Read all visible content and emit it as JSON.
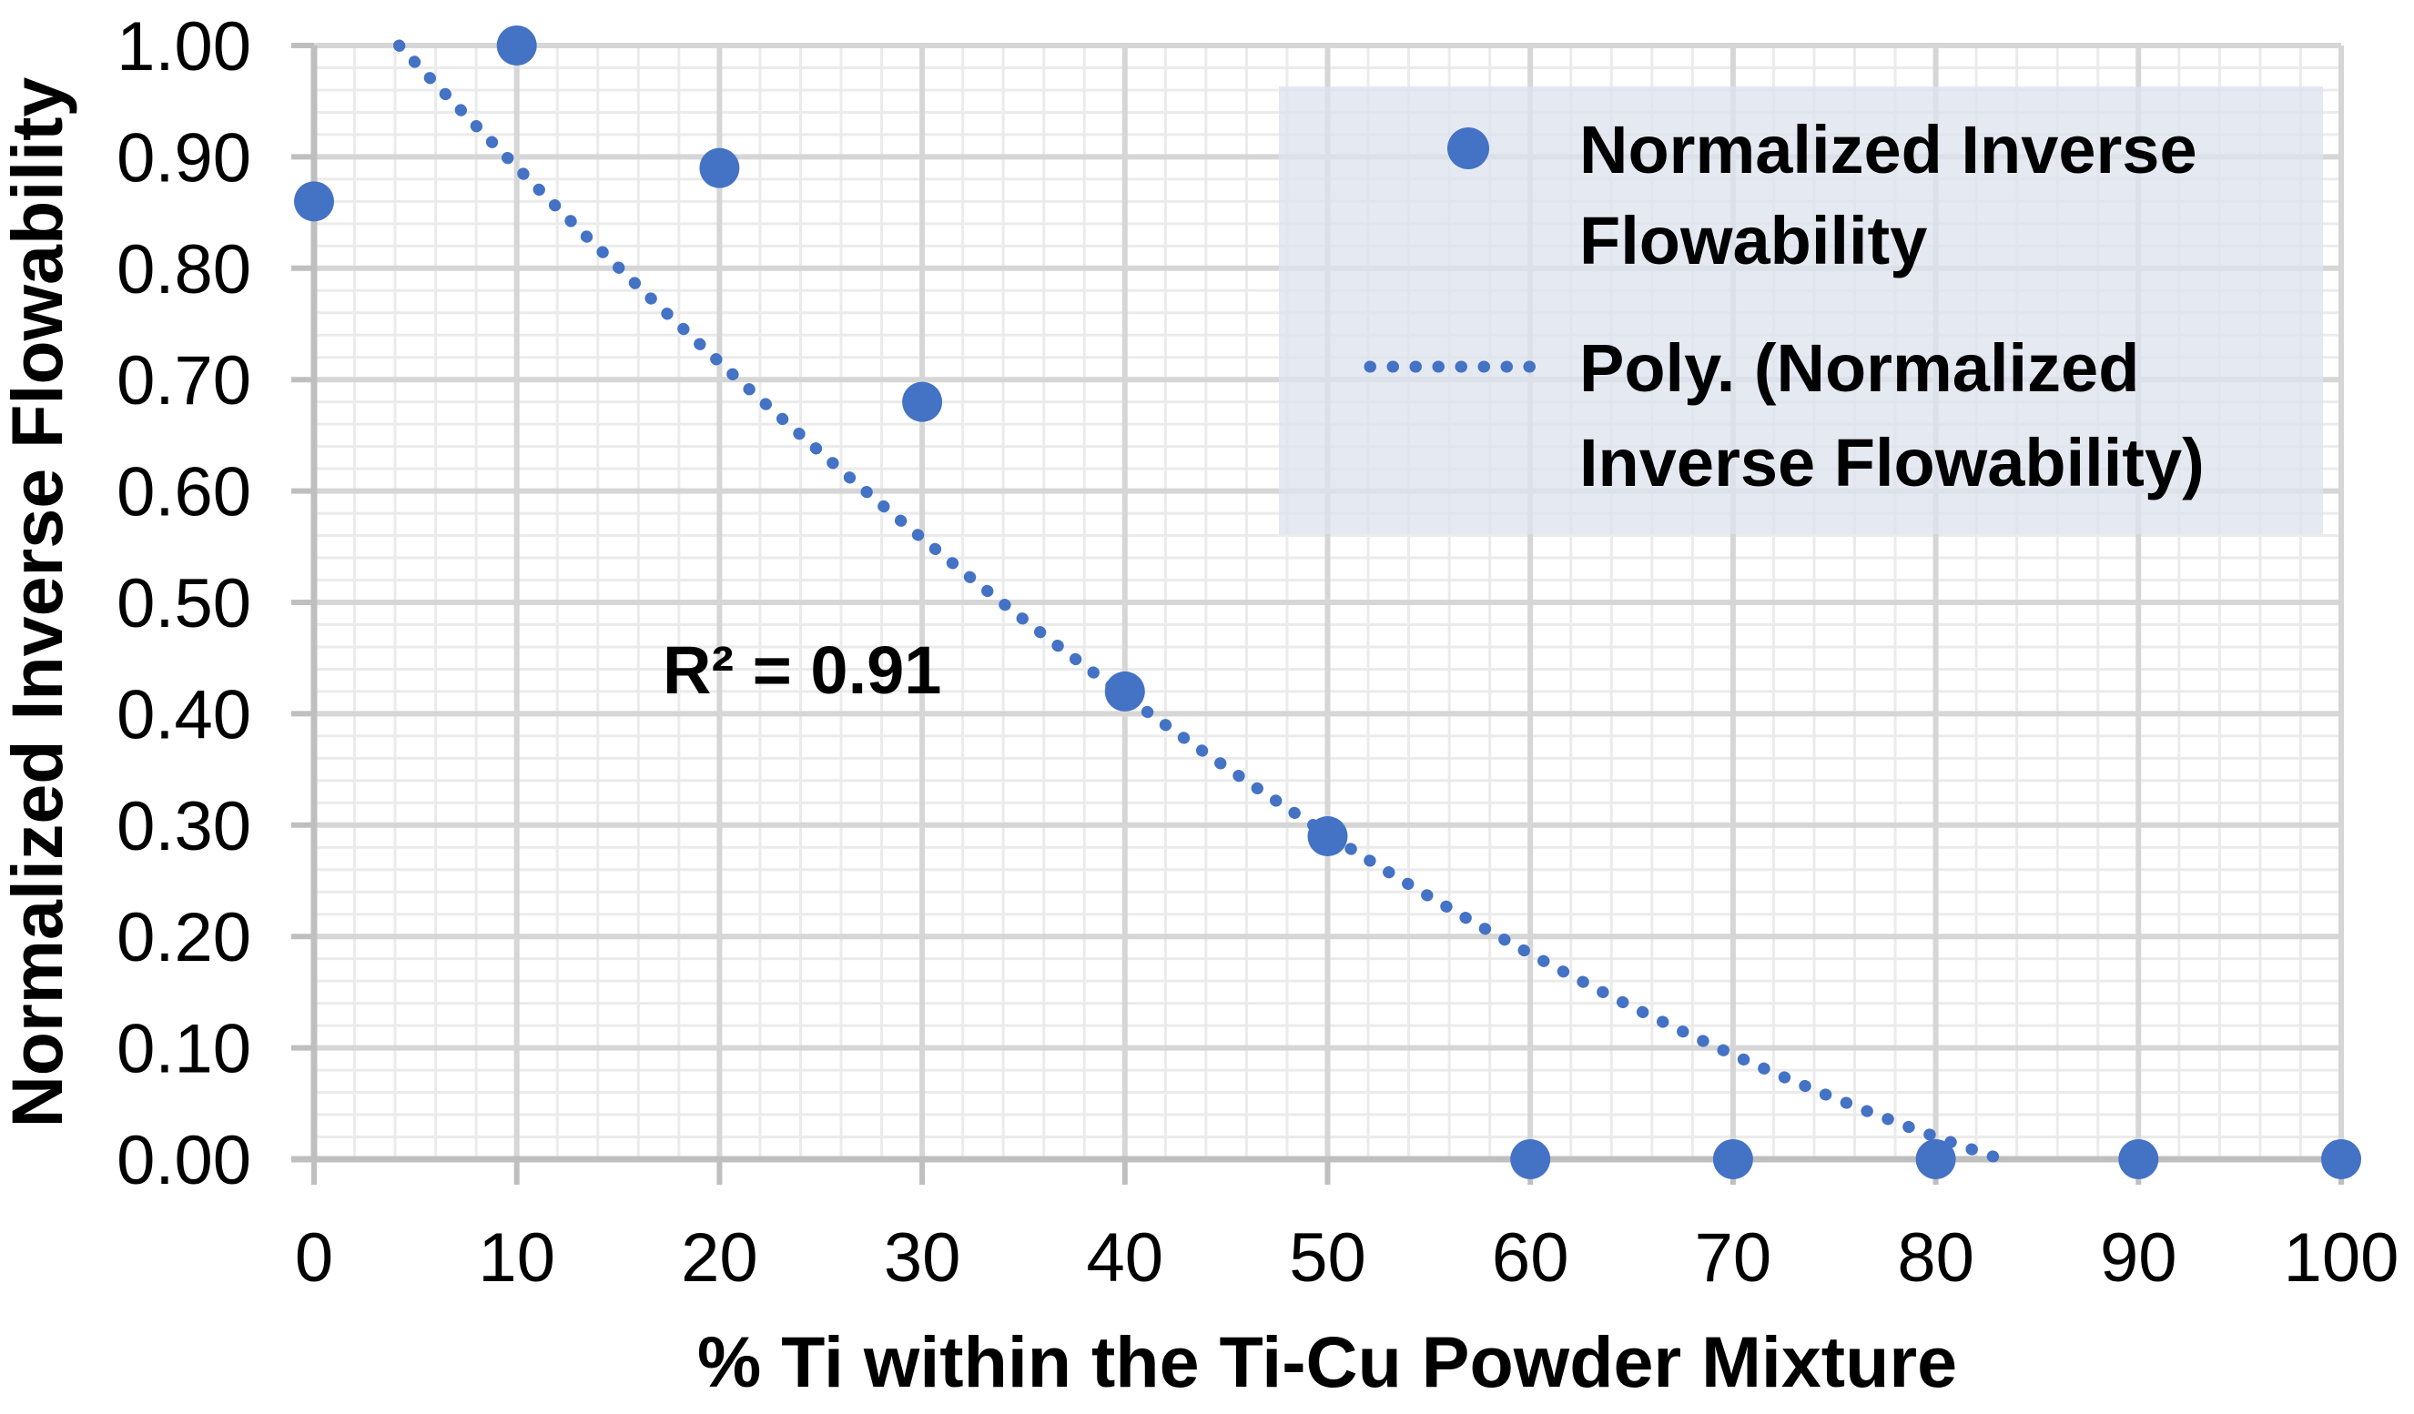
{
  "chart_data": {
    "type": "scatter",
    "xlabel": "% Ti within the Ti-Cu Powder Mixture",
    "ylabel": "Normalized Inverse Flowability",
    "xlim": [
      0,
      100
    ],
    "ylim": [
      0.0,
      1.0
    ],
    "x_ticks": [
      0,
      10,
      20,
      30,
      40,
      50,
      60,
      70,
      80,
      90,
      100
    ],
    "x_tick_labels": [
      "0",
      "10",
      "20",
      "30",
      "40",
      "50",
      "60",
      "70",
      "80",
      "90",
      "100"
    ],
    "y_ticks": [
      0.0,
      0.1,
      0.2,
      0.3,
      0.4,
      0.5,
      0.6,
      0.7,
      0.8,
      0.9,
      1.0
    ],
    "y_tick_labels": [
      "0.00",
      "0.10",
      "0.20",
      "0.30",
      "0.40",
      "0.50",
      "0.60",
      "0.70",
      "0.80",
      "0.90",
      "1.00"
    ],
    "grid": {
      "major": true,
      "minor": true,
      "x_minor_step": 2,
      "y_minor_step": 0.02
    },
    "series": [
      {
        "name": "Normalized Inverse Flowability",
        "marker": "circle",
        "color": "#4472C4",
        "points": [
          [
            0,
            0.86
          ],
          [
            10,
            1.0
          ],
          [
            20,
            0.89
          ],
          [
            30,
            0.68
          ],
          [
            40,
            0.42
          ],
          [
            50,
            0.29
          ],
          [
            60,
            0.0
          ],
          [
            70,
            0.0
          ],
          [
            80,
            0.0
          ],
          [
            90,
            0.0
          ],
          [
            100,
            0.0
          ]
        ]
      }
    ],
    "trendline": {
      "type": "polynomial",
      "order": 2,
      "of_series": "Normalized Inverse Flowability",
      "style": "dotted",
      "color": "#4472C4",
      "r_squared_text": "R² = 0.91"
    },
    "legend": {
      "position": "top-right",
      "entries": [
        {
          "marker": "dot",
          "label": "Normalized Inverse Flowability",
          "lines": [
            "Normalized Inverse",
            "Flowability"
          ]
        },
        {
          "marker": "dotted-line",
          "label": "Poly. (Normalized Inverse Flowability)",
          "lines": [
            "Poly. (Normalized",
            "Inverse Flowability)"
          ]
        }
      ]
    },
    "colors": {
      "series_blue": "#4472C4",
      "major_grid": "#D6D6D6",
      "minor_grid": "#EBEBEB",
      "axis_line": "#BFBFBF",
      "legend_bg": "#E7EAF2"
    }
  }
}
